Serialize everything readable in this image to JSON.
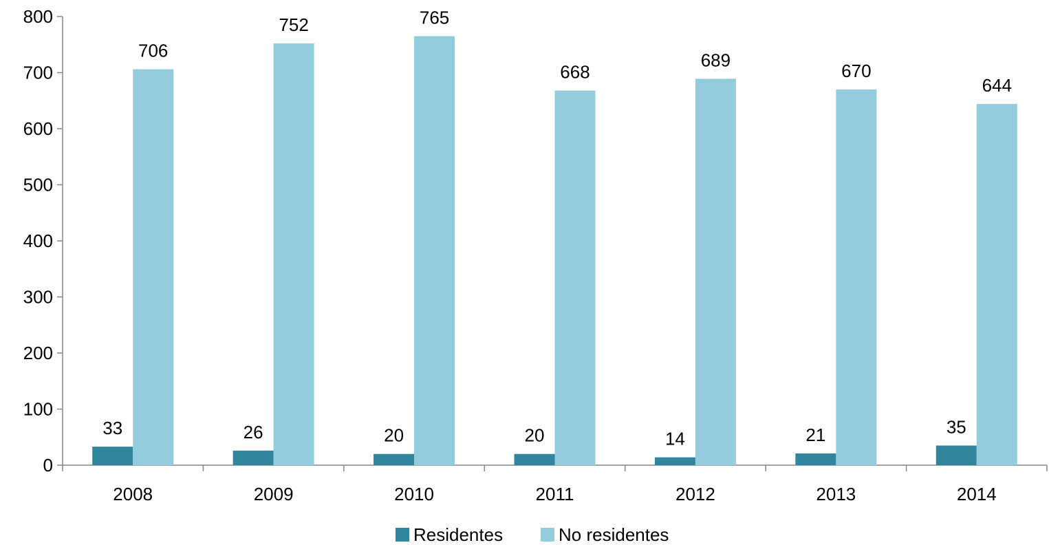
{
  "chart_data": {
    "type": "bar",
    "categories": [
      "2008",
      "2009",
      "2010",
      "2011",
      "2012",
      "2013",
      "2014"
    ],
    "series": [
      {
        "name": "Residentes",
        "color": "#31859c",
        "values": [
          33,
          26,
          20,
          20,
          14,
          21,
          35
        ]
      },
      {
        "name": "No residentes",
        "color": "#93cddd",
        "values": [
          706,
          752,
          765,
          668,
          689,
          670,
          644
        ]
      }
    ],
    "ylim": [
      0,
      800
    ],
    "yticks": [
      0,
      100,
      200,
      300,
      400,
      500,
      600,
      700,
      800
    ],
    "ytick_labels": [
      "0",
      "100",
      "200",
      "300",
      "400",
      "500",
      "600",
      "700",
      "800"
    ],
    "data_labels": true,
    "grid": false,
    "legend": "bottom-center",
    "title": "",
    "xlabel": "",
    "ylabel": ""
  }
}
